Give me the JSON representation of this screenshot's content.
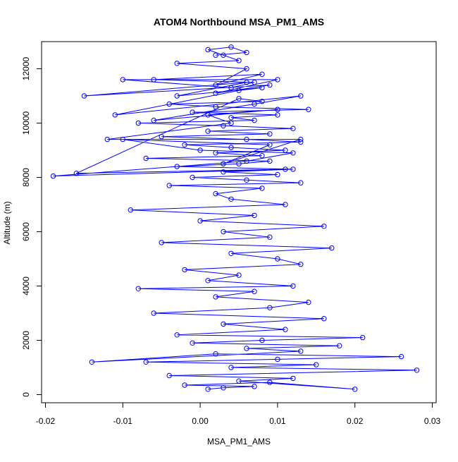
{
  "chart_data": {
    "type": "line",
    "title": "ATOM4 Northbound MSA_PM1_AMS",
    "xlabel": "MSA_PM1_AMS",
    "ylabel": "Altitude (m)",
    "xlim": [
      -0.02,
      0.03
    ],
    "ylim": [
      0,
      12800
    ],
    "x_ticks": [
      -0.02,
      -0.01,
      0.0,
      0.01,
      0.02,
      0.03
    ],
    "x_tick_labels": [
      "-0.02",
      "-0.01",
      "0.00",
      "0.01",
      "0.02",
      "0.03"
    ],
    "y_ticks": [
      0,
      2000,
      4000,
      6000,
      8000,
      10000,
      12000
    ],
    "y_tick_labels": [
      "0",
      "2000",
      "4000",
      "6000",
      "8000",
      "10000",
      "12000"
    ],
    "grid": false,
    "legend": "none",
    "series_style": {
      "color": "#0000ff",
      "marker": "open-circle",
      "line": true
    },
    "series": [
      {
        "x": [
          0.001,
          0.003,
          0.007,
          -0.002,
          0.009,
          0.02,
          0.005,
          0.012,
          -0.004,
          0.028,
          0.004,
          0.015,
          -0.007,
          0.01,
          0.026,
          0.002,
          -0.014,
          0.013,
          0.006,
          0.018,
          -0.001,
          0.008,
          0.021,
          -0.003,
          0.011,
          0.003,
          0.016,
          -0.006,
          0.009,
          0.014,
          0.002,
          0.007,
          -0.008,
          0.012,
          0.001,
          0.005,
          -0.002,
          0.013,
          0.01,
          0.004,
          0.017,
          -0.005,
          0.009,
          0.003,
          0.016,
          0.0,
          0.007,
          -0.009,
          0.011,
          0.004,
          0.002,
          0.008,
          -0.004,
          0.013,
          0.006,
          -0.001,
          0.01,
          0.003,
          0.012,
          -0.003,
          0.005,
          0.009,
          -0.007,
          0.008,
          0.002,
          0.011,
          0.004,
          -0.002,
          0.013,
          0.006,
          -0.005,
          0.009,
          0.001,
          0.012,
          0.003,
          -0.008,
          0.007,
          0.004,
          0.01,
          -0.001,
          0.014,
          0.002,
          -0.004,
          0.008,
          0.005,
          -0.016,
          0.011,
          -0.019,
          0.006,
          0.012,
          0.0,
          -0.01,
          0.009,
          0.003,
          0.013,
          -0.012,
          0.004,
          0.001,
          0.01,
          -0.006,
          0.007,
          0.013,
          -0.011,
          0.005,
          0.008,
          -0.003,
          0.006,
          -0.015,
          0.009,
          0.002,
          0.01,
          -0.01,
          0.004,
          0.007,
          -0.006,
          0.008,
          0.002,
          0.006,
          -0.003,
          0.005,
          0.003,
          0.001,
          0.004,
          0.006,
          0.002
        ],
        "y": [
          200,
          250,
          300,
          350,
          450,
          200,
          500,
          600,
          700,
          900,
          1000,
          1100,
          1200,
          1300,
          1400,
          1500,
          1200,
          1600,
          1700,
          1800,
          1900,
          2000,
          2100,
          2200,
          2400,
          2600,
          2800,
          3000,
          3200,
          3400,
          3600,
          3800,
          3900,
          4000,
          4200,
          4400,
          4600,
          4800,
          5000,
          5200,
          5400,
          5600,
          5800,
          6000,
          6200,
          6400,
          6600,
          6800,
          7000,
          7200,
          7400,
          7600,
          7700,
          7800,
          7900,
          8000,
          8100,
          8200,
          8300,
          8400,
          8500,
          8600,
          8700,
          8800,
          8900,
          9000,
          9100,
          9200,
          9300,
          9400,
          9500,
          9600,
          9700,
          9800,
          9900,
          10000,
          10100,
          10200,
          10300,
          10400,
          10500,
          10600,
          10700,
          10800,
          10900,
          8150,
          8300,
          8050,
          8600,
          8900,
          9000,
          9400,
          9200,
          8500,
          9400,
          9400,
          10000,
          10300,
          10500,
          10100,
          10700,
          11000,
          10300,
          11200,
          11300,
          11000,
          11500,
          11000,
          11400,
          11100,
          11600,
          11600,
          11300,
          11500,
          11600,
          11800,
          11400,
          12000,
          12200,
          12300,
          12500,
          12700,
          12800,
          12600,
          12500
        ]
      }
    ]
  }
}
